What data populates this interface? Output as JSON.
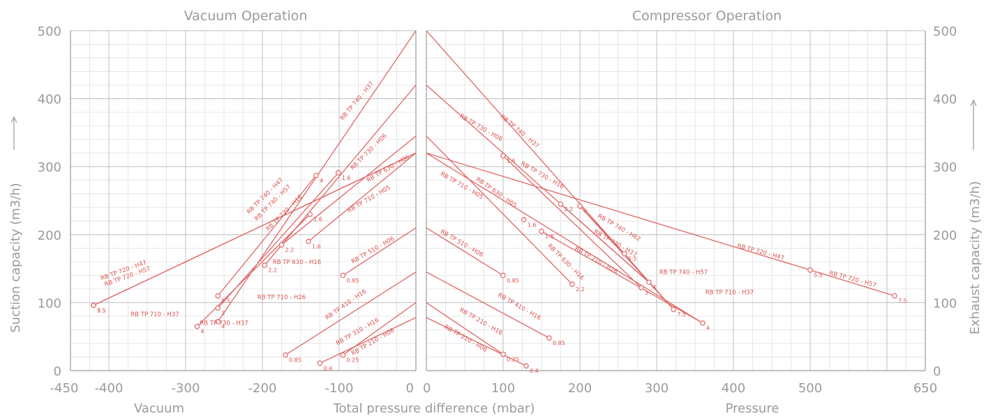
{
  "chart_data": {
    "type": "line",
    "panel_titles": {
      "left": "Vacuum Operation",
      "right": "Compressor Operation"
    },
    "xlabel": "Total pressure difference (mbar)",
    "xlabel_left": "Vacuum",
    "xlabel_right": "Pressure",
    "ylabel_left": "Suction capacity (m3/h)",
    "ylabel_right": "Exhaust capacity (m3/h)",
    "y_arrow": "⟶",
    "ylim": [
      0,
      500
    ],
    "left_xlim": [
      -450,
      0
    ],
    "right_xlim": [
      0,
      650
    ],
    "left_xticks": [
      "-450",
      "-400",
      "-300",
      "-200",
      "-100",
      "0"
    ],
    "left_xtick_values": [
      -450,
      -400,
      -300,
      -200,
      -100,
      0
    ],
    "right_xticks": [
      "0",
      "100",
      "200",
      "300",
      "400",
      "500",
      "650"
    ],
    "right_xtick_values": [
      0,
      100,
      200,
      300,
      400,
      500,
      650
    ],
    "yticks": [
      "0",
      "100",
      "200",
      "300",
      "400",
      "500"
    ],
    "ytick_values": [
      0,
      100,
      200,
      300,
      400,
      500
    ],
    "grid": true,
    "vacuum_series": [
      {
        "name": "RB TP 740 - H37",
        "line": [
          [
            -258,
            72
          ],
          [
            0,
            500
          ]
        ],
        "points": [
          [
            -258,
            72,
            "4"
          ]
        ]
      },
      {
        "name": "RB TP 730 - H06",
        "line": [
          [
            -197,
            155
          ],
          [
            0,
            420
          ]
        ],
        "points": [
          [
            -197,
            155,
            "2.2"
          ]
        ]
      },
      {
        "name": "RB TP 630 - H06",
        "line": [
          [
            -175,
            185
          ],
          [
            0,
            345
          ]
        ],
        "points": [
          [
            -175,
            185,
            "2.2"
          ],
          [
            -140,
            190,
            "1.6"
          ]
        ]
      },
      {
        "name": "RB TP 710 - H05",
        "line": [
          [
            -140,
            190
          ],
          [
            0,
            320
          ]
        ],
        "points": []
      },
      {
        "name": "RB TP 740 - H47",
        "line": [
          [
            -258,
            110
          ],
          [
            -130,
            287
          ]
        ],
        "points": [
          [
            -258,
            110,
            "5.5"
          ],
          [
            -130,
            287,
            "4"
          ]
        ]
      },
      {
        "name": "RB TP 740 - H57",
        "line": [
          [
            -258,
            92
          ],
          [
            -101,
            291
          ]
        ],
        "points": [
          [
            -258,
            92,
            "3"
          ],
          [
            -101,
            291,
            "1.6"
          ]
        ]
      },
      {
        "name": "RB TP 730 - H16",
        "line": [
          [
            -285,
            65
          ],
          [
            -138,
            230
          ]
        ],
        "points": [
          [
            -285,
            65,
            "4"
          ],
          [
            -138,
            230,
            "1.6"
          ]
        ]
      },
      {
        "name": "RB TP 720 - H47",
        "line": [
          [
            -420,
            96
          ],
          [
            0,
            320
          ]
        ],
        "points": [
          [
            -420,
            96,
            "5.5"
          ]
        ]
      },
      {
        "name": "RB TP 720 - H57",
        "line": [
          [
            -420,
            96
          ],
          [
            0,
            320
          ]
        ],
        "points": [
          [
            -420,
            96,
            "7.5"
          ]
        ]
      },
      {
        "name": "RB TP 510 - H06",
        "line": [
          [
            -95,
            140
          ],
          [
            0,
            210
          ]
        ],
        "points": [
          [
            -95,
            140,
            "0.85"
          ]
        ]
      },
      {
        "name": "RB TP 410 - H16",
        "line": [
          [
            -170,
            23
          ],
          [
            0,
            145
          ]
        ],
        "points": [
          [
            -170,
            23,
            "0.85"
          ]
        ]
      },
      {
        "name": "RB TP 310 - H16",
        "line": [
          [
            -95,
            23
          ],
          [
            0,
            100
          ]
        ],
        "points": [
          [
            -95,
            23,
            "0.25"
          ]
        ]
      },
      {
        "name": "RB TP 210 - H06",
        "line": [
          [
            -125,
            11
          ],
          [
            0,
            78
          ]
        ],
        "points": [
          [
            -125,
            11,
            "0.4"
          ]
        ]
      }
    ],
    "compressor_series": [
      {
        "name": "RB TP 740 - H37",
        "line": [
          [
            0,
            500
          ],
          [
            322,
            90
          ]
        ],
        "points": [
          [
            322,
            90,
            "7.5"
          ]
        ]
      },
      {
        "name": "RB TP 730 - H06",
        "line": [
          [
            0,
            420
          ],
          [
            290,
            130
          ]
        ],
        "points": [
          [
            100,
            316,
            "1.6"
          ],
          [
            290,
            130,
            "4"
          ]
        ]
      },
      {
        "name": "RB TP 740 - H47",
        "line": [
          [
            175,
            245
          ],
          [
            290,
            130
          ]
        ],
        "points": [
          [
            175,
            245,
            "2.2"
          ]
        ]
      },
      {
        "name": "RB TP 740 - H57",
        "line": [
          [
            200,
            242
          ],
          [
            322,
            90
          ]
        ],
        "points": [
          [
            200,
            242,
            "4"
          ]
        ]
      },
      {
        "name": "RB TP 740 - H62",
        "line": [
          [
            200,
            242
          ],
          [
            258,
            172
          ]
        ],
        "points": [
          [
            258,
            172,
            "5.5"
          ]
        ]
      },
      {
        "name": "RB TP 730 - H37",
        "line": [
          [
            100,
            316
          ],
          [
            280,
            122
          ]
        ],
        "points": [
          [
            280,
            122,
            "3"
          ]
        ]
      },
      {
        "name": "RB TP 630 - H06",
        "line": [
          [
            0,
            345
          ],
          [
            190,
            127
          ]
        ],
        "points": [
          [
            190,
            127,
            "2.2"
          ],
          [
            127,
            222,
            "1.6"
          ]
        ]
      },
      {
        "name": "RB TP 710 - H05",
        "line": [
          [
            0,
            320
          ],
          [
            360,
            70
          ]
        ],
        "points": [
          [
            360,
            70,
            "4"
          ],
          [
            150,
            205,
            "1.6"
          ]
        ]
      },
      {
        "name": "RB TP 710 - H26",
        "line": [
          [
            150,
            205
          ],
          [
            360,
            70
          ]
        ],
        "points": []
      },
      {
        "name": "RB TP 720 - H47",
        "line": [
          [
            0,
            320
          ],
          [
            500,
            148
          ]
        ],
        "points": [
          [
            500,
            148,
            "5.5"
          ]
        ]
      },
      {
        "name": "RB TP 720 - H57",
        "line": [
          [
            500,
            148
          ],
          [
            610,
            110
          ]
        ],
        "points": [
          [
            610,
            110,
            "7.5"
          ]
        ]
      },
      {
        "name": "RB TP 510 - H06",
        "line": [
          [
            0,
            210
          ],
          [
            100,
            140
          ]
        ],
        "points": [
          [
            100,
            140,
            "0.85"
          ]
        ]
      },
      {
        "name": "RB TP 410 - H16",
        "line": [
          [
            0,
            145
          ],
          [
            160,
            48
          ]
        ],
        "points": [
          [
            160,
            48,
            "0.85"
          ]
        ]
      },
      {
        "name": "RB TP 210 - H16",
        "line": [
          [
            0,
            100
          ],
          [
            100,
            24
          ]
        ],
        "points": [
          [
            100,
            24,
            "0.25"
          ]
        ]
      },
      {
        "name": "RB TP 210 - H06",
        "line": [
          [
            0,
            78
          ],
          [
            130,
            7
          ]
        ],
        "points": [
          [
            130,
            7,
            "0.4"
          ]
        ]
      }
    ],
    "left_model_labels": [
      {
        "text": "RB TP 740 - H37",
        "at": [
          -75,
          395
        ],
        "angle": -50
      },
      {
        "text": "RB TP 730 - H06",
        "at": [
          -60,
          320
        ],
        "angle": -45
      },
      {
        "text": "RB TP 630 - H06",
        "at": [
          -35,
          295
        ],
        "angle": -30
      },
      {
        "text": "RB TP 710 - H05",
        "at": [
          -60,
          250
        ],
        "angle": -30
      },
      {
        "text": "RB TP 740 - H47",
        "at": [
          -195,
          255
        ],
        "angle": -45
      },
      {
        "text": "RB TP 740 - H57",
        "at": [
          -185,
          245
        ],
        "angle": -45
      },
      {
        "text": "RB TP 730 - H16",
        "at": [
          -170,
          230
        ],
        "angle": -45
      },
      {
        "text": "RB TP 720 - H47",
        "at": [
          -380,
          145
        ],
        "angle": -20
      },
      {
        "text": "RB TP 720 - H57",
        "at": [
          -375,
          136
        ],
        "angle": -20
      },
      {
        "text": "RB TP 630 - H16",
        "at": [
          -155,
          157
        ],
        "angle": 0
      },
      {
        "text": "RB TP 710 - H26",
        "at": [
          -175,
          105
        ],
        "angle": 0
      },
      {
        "text": "RB TP 710 - H37",
        "at": [
          -340,
          80
        ],
        "angle": 0
      },
      {
        "text": "RB TP 730 - H37",
        "at": [
          -250,
          67
        ],
        "angle": 0
      },
      {
        "text": "RB TP 510 - H06",
        "at": [
          -55,
          175
        ],
        "angle": -30
      },
      {
        "text": "RB TP 410 - H16",
        "at": [
          -90,
          95
        ],
        "angle": -35
      },
      {
        "text": "RB TP 310 - H16",
        "at": [
          -75,
          55
        ],
        "angle": -30
      },
      {
        "text": "RB TP 210 - H06",
        "at": [
          -55,
          40
        ],
        "angle": -30
      }
    ],
    "right_model_labels": [
      {
        "text": "RB TP 730 - H06",
        "at": [
          70,
          355
        ],
        "angle": 30
      },
      {
        "text": "RB TP 740 - H37",
        "at": [
          120,
          350
        ],
        "angle": 40
      },
      {
        "text": "RB TP 730 - H16",
        "at": [
          150,
          285
        ],
        "angle": 30
      },
      {
        "text": "RB TP 630 - H05",
        "at": [
          90,
          260
        ],
        "angle": 35
      },
      {
        "text": "RB TP 710 - H05",
        "at": [
          45,
          270
        ],
        "angle": 30
      },
      {
        "text": "RB TP 740 - H62",
        "at": [
          250,
          208
        ],
        "angle": 30
      },
      {
        "text": "RB TP 730 - H37",
        "at": [
          245,
          185
        ],
        "angle": 30
      },
      {
        "text": "RB TP 710 - H26",
        "at": [
          220,
          160
        ],
        "angle": 30
      },
      {
        "text": "RB TP 630 - H16",
        "at": [
          180,
          158
        ],
        "angle": 45
      },
      {
        "text": "RB TP 740 - H57",
        "at": [
          335,
          142
        ],
        "angle": 0
      },
      {
        "text": "RB TP 710 - H37",
        "at": [
          395,
          112
        ],
        "angle": 0
      },
      {
        "text": "RB TP 720 - H47",
        "at": [
          435,
          172
        ],
        "angle": 15
      },
      {
        "text": "RB TP 720 - H57",
        "at": [
          555,
          132
        ],
        "angle": 15
      },
      {
        "text": "RB TP 510 - H06",
        "at": [
          45,
          185
        ],
        "angle": 30
      },
      {
        "text": "RB TP 410 - H16",
        "at": [
          120,
          92
        ],
        "angle": 30
      },
      {
        "text": "RB TP 210 - H16",
        "at": [
          70,
          70
        ],
        "angle": 30
      },
      {
        "text": "RB TP 210 - H06",
        "at": [
          50,
          45
        ],
        "angle": 30
      }
    ]
  }
}
